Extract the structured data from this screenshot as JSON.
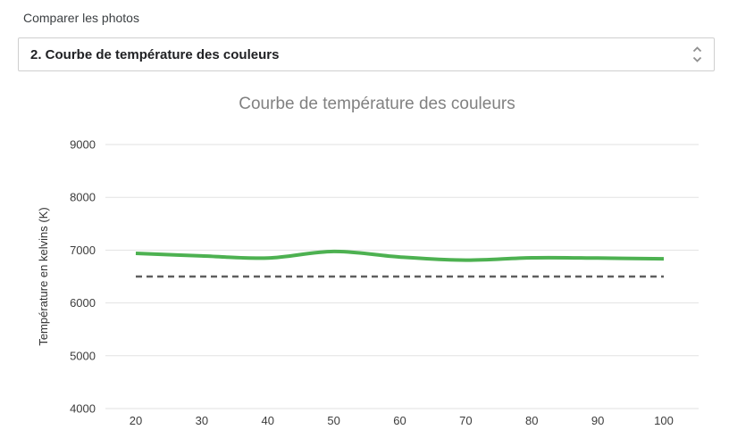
{
  "header": {
    "label": "Comparer les photos"
  },
  "selector": {
    "value": "2. Courbe de température des couleurs",
    "chevron_icon": "chevron-up-down"
  },
  "chart_data": {
    "type": "line",
    "title": "Courbe de température des couleurs",
    "xlabel": "",
    "ylabel": "Température en kelvins (K)",
    "x": [
      20,
      30,
      40,
      50,
      60,
      70,
      80,
      90,
      100
    ],
    "xticks": [
      20,
      30,
      40,
      50,
      60,
      70,
      80,
      90,
      100
    ],
    "yticks": [
      4000,
      5000,
      6000,
      7000,
      8000,
      9000
    ],
    "ylim": [
      4000,
      9000
    ],
    "grid": "horizontal",
    "legend": "none",
    "series": [
      {
        "name": "temperature-couleurs",
        "style": "solid",
        "smooth": true,
        "color": "#4db151",
        "values": [
          6940,
          6890,
          6850,
          6975,
          6870,
          6810,
          6855,
          6850,
          6835
        ]
      },
      {
        "name": "reference",
        "style": "dashed",
        "smooth": false,
        "color": "#5f5f5f",
        "values": [
          6500,
          6500,
          6500,
          6500,
          6500,
          6500,
          6500,
          6500,
          6500
        ]
      }
    ],
    "colors": {
      "grid": "#e2e2e2",
      "tick_label": "#3c3c3c",
      "axis_title": "#333333",
      "title": "#818181"
    }
  }
}
